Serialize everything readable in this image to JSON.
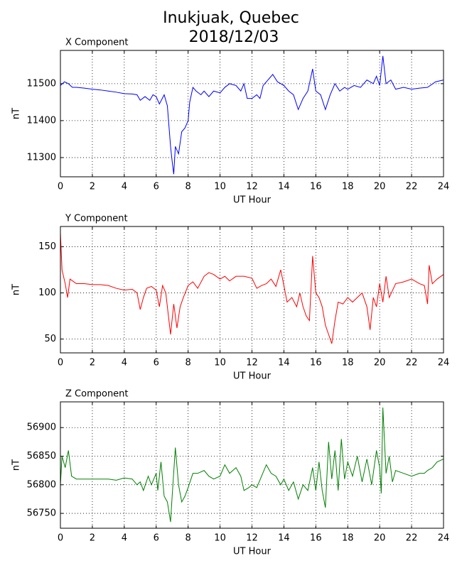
{
  "suptitle": [
    "Inukjuak, Quebec",
    "2018/12/03"
  ],
  "chart_data": [
    {
      "type": "line",
      "title": "X Component",
      "xlabel": "UT Hour",
      "ylabel": "nT",
      "color": "#0000ff",
      "grid": true,
      "xlim": [
        0,
        24
      ],
      "xticks": [
        0,
        2,
        4,
        6,
        8,
        10,
        12,
        14,
        16,
        18,
        20,
        22,
        24
      ],
      "ylim": [
        11248,
        11590
      ],
      "yticks": [
        11300,
        11400,
        11500
      ],
      "x": [
        0,
        0.25,
        0.5,
        0.75,
        1,
        1.5,
        2,
        2.5,
        3,
        3.5,
        4,
        4.5,
        4.8,
        5,
        5.3,
        5.6,
        5.8,
        6,
        6.2,
        6.5,
        6.7,
        6.9,
        7.0,
        7.1,
        7.2,
        7.4,
        7.6,
        7.8,
        8,
        8.1,
        8.3,
        8.5,
        8.8,
        9,
        9.3,
        9.6,
        10,
        10.3,
        10.6,
        11,
        11.3,
        11.5,
        11.7,
        12,
        12.3,
        12.5,
        12.7,
        13,
        13.3,
        13.6,
        14,
        14.3,
        14.6,
        14.9,
        15.2,
        15.5,
        15.8,
        16,
        16.3,
        16.6,
        16.9,
        17.2,
        17.5,
        17.8,
        18,
        18.4,
        18.8,
        19.2,
        19.6,
        19.8,
        20,
        20.2,
        20.4,
        20.7,
        21,
        21.5,
        22,
        22.5,
        23,
        23.5,
        24
      ],
      "values": [
        11495,
        11505,
        11500,
        11490,
        11490,
        11488,
        11485,
        11483,
        11480,
        11477,
        11473,
        11472,
        11470,
        11455,
        11465,
        11455,
        11470,
        11465,
        11445,
        11470,
        11440,
        11330,
        11290,
        11255,
        11330,
        11310,
        11370,
        11380,
        11400,
        11450,
        11490,
        11480,
        11470,
        11480,
        11465,
        11480,
        11475,
        11490,
        11500,
        11495,
        11480,
        11500,
        11460,
        11460,
        11470,
        11460,
        11495,
        11510,
        11525,
        11505,
        11495,
        11480,
        11470,
        11430,
        11460,
        11480,
        11540,
        11480,
        11470,
        11430,
        11470,
        11500,
        11480,
        11490,
        11485,
        11495,
        11490,
        11510,
        11500,
        11520,
        11495,
        11575,
        11500,
        11510,
        11485,
        11490,
        11485,
        11488,
        11490,
        11505,
        11510
      ]
    },
    {
      "type": "line",
      "title": "Y Component",
      "xlabel": "UT Hour",
      "ylabel": "nT",
      "color": "#ff0000",
      "grid": true,
      "xlim": [
        0,
        24
      ],
      "xticks": [
        0,
        2,
        4,
        6,
        8,
        10,
        12,
        14,
        16,
        18,
        20,
        22,
        24
      ],
      "ylim": [
        35,
        172
      ],
      "yticks": [
        50,
        100,
        150
      ],
      "x": [
        0,
        0.1,
        0.3,
        0.45,
        0.6,
        1,
        1.5,
        2,
        2.5,
        3,
        3.5,
        4,
        4.5,
        4.8,
        5,
        5.2,
        5.4,
        5.7,
        6,
        6.2,
        6.4,
        6.6,
        6.8,
        6.9,
        7.1,
        7.3,
        7.5,
        7.7,
        8,
        8.3,
        8.6,
        9,
        9.3,
        9.6,
        10,
        10.3,
        10.6,
        11,
        11.5,
        12,
        12.3,
        12.6,
        12.9,
        13.2,
        13.5,
        13.8,
        14,
        14.2,
        14.5,
        14.8,
        15,
        15.2,
        15.4,
        15.6,
        15.8,
        16,
        16.2,
        16.4,
        16.6,
        16.8,
        17,
        17.2,
        17.4,
        17.7,
        18,
        18.3,
        18.6,
        18.9,
        19.2,
        19.4,
        19.6,
        19.8,
        20,
        20.2,
        20.4,
        20.6,
        21,
        21.5,
        22,
        22.5,
        22.8,
        23,
        23.1,
        23.3,
        23.6,
        24
      ],
      "values": [
        165,
        125,
        110,
        95,
        115,
        110,
        110,
        109,
        109,
        108,
        105,
        103,
        104,
        100,
        82,
        95,
        105,
        107,
        103,
        85,
        108,
        100,
        70,
        55,
        88,
        62,
        85,
        95,
        108,
        112,
        105,
        118,
        122,
        120,
        115,
        118,
        113,
        118,
        118,
        116,
        105,
        108,
        110,
        115,
        107,
        125,
        108,
        90,
        95,
        85,
        100,
        85,
        75,
        70,
        140,
        100,
        95,
        85,
        65,
        55,
        45,
        70,
        90,
        88,
        95,
        90,
        95,
        100,
        85,
        60,
        95,
        85,
        110,
        90,
        118,
        95,
        110,
        112,
        115,
        110,
        108,
        88,
        130,
        110,
        115,
        120
      ]
    },
    {
      "type": "line",
      "title": "Z Component",
      "xlabel": "UT Hour",
      "ylabel": "nT",
      "color": "#008000",
      "grid": true,
      "xlim": [
        0,
        24
      ],
      "xticks": [
        0,
        2,
        4,
        6,
        8,
        10,
        12,
        14,
        16,
        18,
        20,
        22,
        24
      ],
      "ylim": [
        56724,
        56945
      ],
      "yticks": [
        56750,
        56800,
        56850,
        56900
      ],
      "x": [
        0,
        0.1,
        0.3,
        0.5,
        0.7,
        1,
        1.5,
        2,
        2.5,
        3,
        3.5,
        4,
        4.5,
        4.8,
        5,
        5.2,
        5.5,
        5.7,
        6,
        6.1,
        6.3,
        6.5,
        6.7,
        6.9,
        7,
        7.2,
        7.4,
        7.6,
        7.8,
        8,
        8.3,
        8.6,
        9,
        9.3,
        9.6,
        10,
        10.3,
        10.6,
        11,
        11.3,
        11.5,
        11.8,
        12,
        12.3,
        12.6,
        12.9,
        13.2,
        13.5,
        13.8,
        14,
        14.3,
        14.6,
        14.9,
        15.2,
        15.5,
        15.8,
        16,
        16.2,
        16.4,
        16.6,
        16.8,
        17,
        17.2,
        17.4,
        17.6,
        17.8,
        18,
        18.3,
        18.6,
        18.9,
        19.2,
        19.5,
        19.8,
        20,
        20.1,
        20.2,
        20.4,
        20.6,
        20.8,
        21,
        21.5,
        22,
        22.5,
        22.8,
        23,
        23.3,
        23.6,
        24
      ],
      "values": [
        56800,
        56850,
        56830,
        56860,
        56815,
        56810,
        56810,
        56810,
        56810,
        56810,
        56808,
        56812,
        56810,
        56800,
        56805,
        56790,
        56815,
        56800,
        56820,
        56790,
        56840,
        56780,
        56770,
        56735,
        56780,
        56865,
        56800,
        56770,
        56780,
        56795,
        56820,
        56820,
        56825,
        56815,
        56810,
        56815,
        56835,
        56820,
        56830,
        56815,
        56790,
        56795,
        56800,
        56795,
        56815,
        56835,
        56820,
        56815,
        56800,
        56810,
        56790,
        56805,
        56775,
        56800,
        56790,
        56830,
        56790,
        56840,
        56790,
        56760,
        56875,
        56810,
        56860,
        56790,
        56880,
        56810,
        56840,
        56815,
        56850,
        56805,
        56845,
        56800,
        56860,
        56830,
        56785,
        56935,
        56820,
        56850,
        56805,
        56825,
        56820,
        56815,
        56820,
        56820,
        56825,
        56830,
        56840,
        56845
      ]
    }
  ]
}
